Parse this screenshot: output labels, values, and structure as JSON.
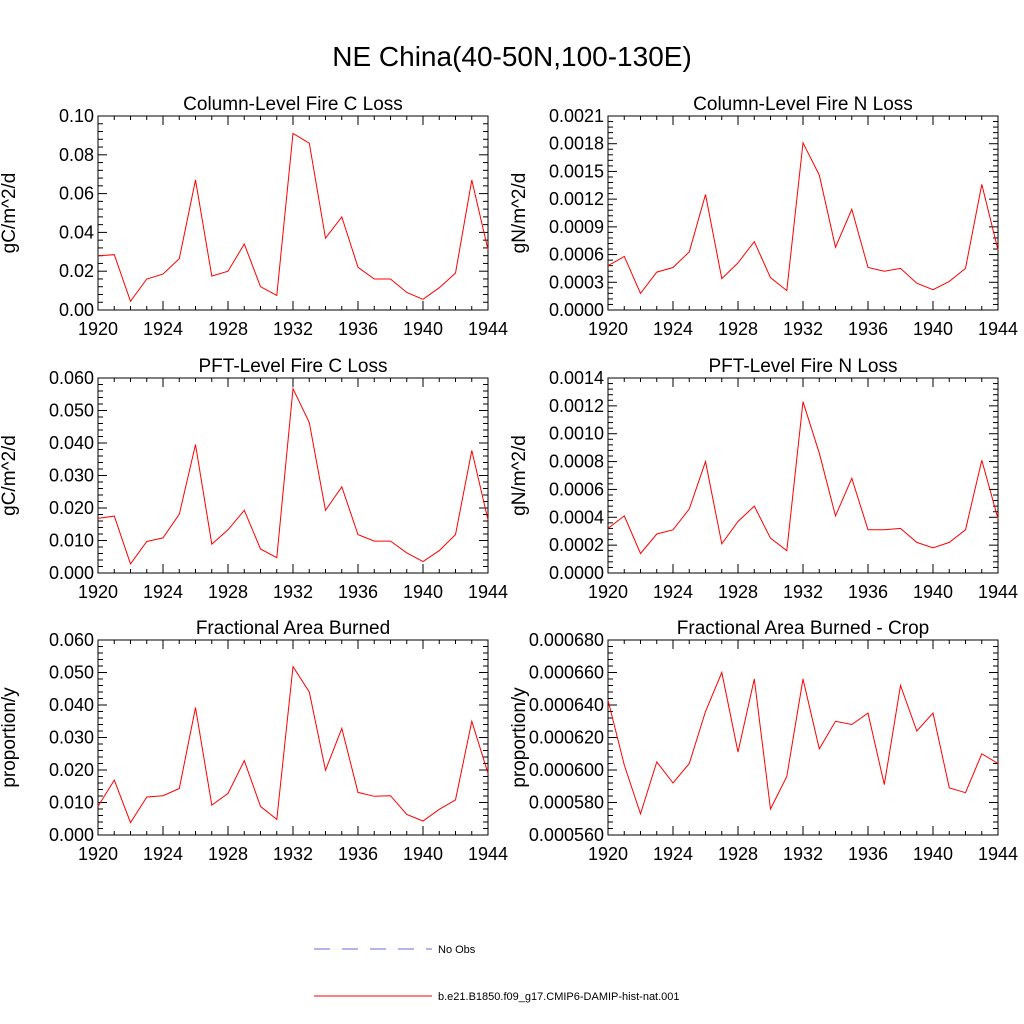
{
  "figure": {
    "title": "NE China(40-50N,100-130E)"
  },
  "legend": {
    "entries": [
      {
        "label": "No Obs",
        "color": "#6b6bd6",
        "style": "dashed"
      },
      {
        "label": "b.e21.B1850.f09_g17.CMIP6-DAMIP-hist-nat.001",
        "color": "#ff0000",
        "style": "solid"
      }
    ]
  },
  "chart_data": [
    {
      "type": "line",
      "title": "Column-Level Fire C Loss",
      "ylabel": "gC/m^2/d",
      "xlim": [
        1920,
        1944
      ],
      "ylim": [
        0,
        0.1
      ],
      "xticks": [
        "1920",
        "1924",
        "1928",
        "1932",
        "1936",
        "1940",
        "1944"
      ],
      "yticks": [
        "0.00",
        "0.02",
        "0.04",
        "0.06",
        "0.08",
        "0.10"
      ],
      "x": [
        1920,
        1921,
        1922,
        1923,
        1924,
        1925,
        1926,
        1927,
        1928,
        1929,
        1930,
        1931,
        1932,
        1933,
        1934,
        1935,
        1936,
        1937,
        1938,
        1939,
        1940,
        1941,
        1942,
        1943,
        1944
      ],
      "series": [
        {
          "color": "#ff0000",
          "values": [
            0.028,
            0.0285,
            0.0045,
            0.016,
            0.0185,
            0.0265,
            0.067,
            0.0175,
            0.02,
            0.034,
            0.012,
            0.0075,
            0.091,
            0.086,
            0.037,
            0.048,
            0.022,
            0.016,
            0.016,
            0.009,
            0.0055,
            0.0115,
            0.019,
            0.067,
            0.031
          ]
        }
      ]
    },
    {
      "type": "line",
      "title": "Column-Level Fire N Loss",
      "ylabel": "gN/m^2/d",
      "xlim": [
        1920,
        1944
      ],
      "ylim": [
        0,
        0.0021
      ],
      "xticks": [
        "1920",
        "1924",
        "1928",
        "1932",
        "1936",
        "1940",
        "1944"
      ],
      "yticks": [
        "0.0000",
        "0.0003",
        "0.0006",
        "0.0009",
        "0.0012",
        "0.0015",
        "0.0018",
        "0.0021"
      ],
      "x": [
        1920,
        1921,
        1922,
        1923,
        1924,
        1925,
        1926,
        1927,
        1928,
        1929,
        1930,
        1931,
        1932,
        1933,
        1934,
        1935,
        1936,
        1937,
        1938,
        1939,
        1940,
        1941,
        1942,
        1943,
        1944
      ],
      "series": [
        {
          "color": "#ff0000",
          "values": [
            0.00048,
            0.00058,
            0.00018,
            0.00041,
            0.00046,
            0.00063,
            0.00125,
            0.00034,
            0.00051,
            0.00074,
            0.00035,
            0.00021,
            0.00181,
            0.00146,
            0.00068,
            0.00109,
            0.00046,
            0.00042,
            0.00045,
            0.00029,
            0.00022,
            0.00031,
            0.00045,
            0.00136,
            0.00065
          ]
        }
      ]
    },
    {
      "type": "line",
      "title": "PFT-Level Fire C Loss",
      "ylabel": "gC/m^2/d",
      "xlim": [
        1920,
        1944
      ],
      "ylim": [
        0,
        0.06
      ],
      "xticks": [
        "1920",
        "1924",
        "1928",
        "1932",
        "1936",
        "1940",
        "1944"
      ],
      "yticks": [
        "0.000",
        "0.010",
        "0.020",
        "0.030",
        "0.040",
        "0.050",
        "0.060"
      ],
      "x": [
        1920,
        1921,
        1922,
        1923,
        1924,
        1925,
        1926,
        1927,
        1928,
        1929,
        1930,
        1931,
        1932,
        1933,
        1934,
        1935,
        1936,
        1937,
        1938,
        1939,
        1940,
        1941,
        1942,
        1943,
        1944
      ],
      "series": [
        {
          "color": "#ff0000",
          "values": [
            0.0168,
            0.0175,
            0.0028,
            0.0097,
            0.0108,
            0.0181,
            0.0395,
            0.0089,
            0.0133,
            0.0193,
            0.0074,
            0.0047,
            0.0567,
            0.0463,
            0.0193,
            0.0265,
            0.0118,
            0.0098,
            0.0098,
            0.0062,
            0.0035,
            0.0069,
            0.0118,
            0.0377,
            0.0163
          ]
        }
      ]
    },
    {
      "type": "line",
      "title": "PFT-Level Fire N Loss",
      "ylabel": "gN/m^2/d",
      "xlim": [
        1920,
        1944
      ],
      "ylim": [
        0,
        0.0014
      ],
      "xticks": [
        "1920",
        "1924",
        "1928",
        "1932",
        "1936",
        "1940",
        "1944"
      ],
      "yticks": [
        "0.0000",
        "0.0002",
        "0.0004",
        "0.0006",
        "0.0008",
        "0.0010",
        "0.0012",
        "0.0014"
      ],
      "x": [
        1920,
        1921,
        1922,
        1923,
        1924,
        1925,
        1926,
        1927,
        1928,
        1929,
        1930,
        1931,
        1932,
        1933,
        1934,
        1935,
        1936,
        1937,
        1938,
        1939,
        1940,
        1941,
        1942,
        1943,
        1944
      ],
      "series": [
        {
          "color": "#ff0000",
          "values": [
            0.00032,
            0.00041,
            0.00014,
            0.00028,
            0.00031,
            0.00046,
            0.0008,
            0.00021,
            0.00037,
            0.00048,
            0.00025,
            0.00016,
            0.00123,
            0.00086,
            0.00041,
            0.00068,
            0.00031,
            0.00031,
            0.00032,
            0.00022,
            0.00018,
            0.00022,
            0.00031,
            0.00081,
            0.00039
          ]
        }
      ]
    },
    {
      "type": "line",
      "title": "Fractional Area Burned",
      "ylabel": "proportion/y",
      "xlim": [
        1920,
        1944
      ],
      "ylim": [
        0,
        0.06
      ],
      "xticks": [
        "1920",
        "1924",
        "1928",
        "1932",
        "1936",
        "1940",
        "1944"
      ],
      "yticks": [
        "0.000",
        "0.010",
        "0.020",
        "0.030",
        "0.040",
        "0.050",
        "0.060"
      ],
      "x": [
        1920,
        1921,
        1922,
        1923,
        1924,
        1925,
        1926,
        1927,
        1928,
        1929,
        1930,
        1931,
        1932,
        1933,
        1934,
        1935,
        1936,
        1937,
        1938,
        1939,
        1940,
        1941,
        1942,
        1943,
        1944
      ],
      "series": [
        {
          "color": "#ff0000",
          "values": [
            0.0088,
            0.0169,
            0.0038,
            0.0117,
            0.0121,
            0.0143,
            0.0392,
            0.0092,
            0.0128,
            0.0229,
            0.0088,
            0.0048,
            0.0518,
            0.044,
            0.0199,
            0.0328,
            0.0131,
            0.0119,
            0.0121,
            0.0063,
            0.0043,
            0.0079,
            0.0108,
            0.035,
            0.019
          ]
        }
      ]
    },
    {
      "type": "line",
      "title": "Fractional Area Burned - Crop",
      "ylabel": "proportion/y",
      "xlim": [
        1920,
        1944
      ],
      "ylim": [
        0.00056,
        0.00068
      ],
      "xticks": [
        "1920",
        "1924",
        "1928",
        "1932",
        "1936",
        "1940",
        "1944"
      ],
      "yticks": [
        "0.000560",
        "0.000580",
        "0.000600",
        "0.000620",
        "0.000640",
        "0.000660",
        "0.000680"
      ],
      "x": [
        1920,
        1921,
        1922,
        1923,
        1924,
        1925,
        1926,
        1927,
        1928,
        1929,
        1930,
        1931,
        1932,
        1933,
        1934,
        1935,
        1936,
        1937,
        1938,
        1939,
        1940,
        1941,
        1942,
        1943,
        1944
      ],
      "series": [
        {
          "color": "#ff0000",
          "values": [
            0.000643,
            0.000603,
            0.000573,
            0.000605,
            0.000592,
            0.000604,
            0.000636,
            0.00066,
            0.000611,
            0.000656,
            0.000576,
            0.000596,
            0.000656,
            0.000613,
            0.00063,
            0.000628,
            0.000635,
            0.000591,
            0.000652,
            0.000624,
            0.000635,
            0.000589,
            0.000586,
            0.00061,
            0.000604
          ]
        }
      ]
    }
  ]
}
